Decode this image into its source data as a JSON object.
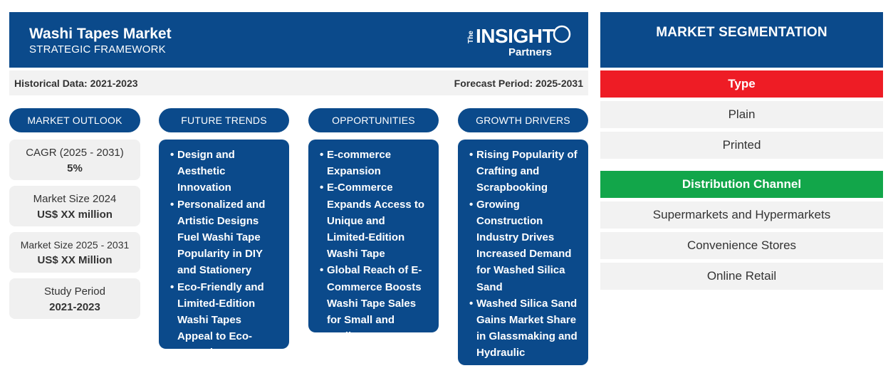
{
  "header": {
    "title": "Washi Tapes Market",
    "subtitle": "STRATEGIC FRAMEWORK",
    "logo": {
      "the": "The",
      "insight": "INSIGHT",
      "partners": "Partners"
    }
  },
  "periods": {
    "historical": "Historical Data: 2021-2023",
    "forecast": "Forecast Period: 2025-2031"
  },
  "columns": {
    "market_outlook": "MARKET OUTLOOK",
    "future_trends": "FUTURE TRENDS",
    "opportunities": "OPPORTUNITIES",
    "growth_drivers": "GROWTH DRIVERS"
  },
  "outlook": [
    {
      "label": "CAGR (2025 - 2031)",
      "value": "5%"
    },
    {
      "label": "Market Size 2024",
      "value": "US$ XX million"
    },
    {
      "label": "Market Size 2025 - 2031",
      "value": "US$ XX Million"
    },
    {
      "label": "Study Period",
      "value": "2021-2023"
    }
  ],
  "future_trends": [
    "Design and Aesthetic Innovation",
    "Personalized and Artistic Designs Fuel Washi Tape Popularity in DIY and Stationery",
    "Eco-Friendly and Limited-Edition Washi Tapes Appeal to Eco-Conscious Consumers"
  ],
  "opportunities": [
    "E-commerce Expansion",
    "E-Commerce Expands Access to Unique and Limited-Edition Washi Tape",
    "Global Reach of E-Commerce Boosts Washi Tape Sales for Small and Medium Businesses"
  ],
  "growth_drivers": [
    "Rising Popularity of Crafting and Scrapbooking",
    "Growing Construction Industry Drives Increased Demand for Washed Silica Sand",
    "Washed Silica Sand Gains Market Share in Glassmaking and Hydraulic Fracturing Sectors"
  ],
  "segmentation": {
    "title": "MARKET SEGMENTATION",
    "type": {
      "label": "Type",
      "color": "#ee1c25",
      "items": [
        "Plain",
        "Printed"
      ]
    },
    "distribution": {
      "label": "Distribution Channel",
      "color": "#12a64a",
      "items": [
        "Supermarkets and Hypermarkets",
        "Convenience Stores",
        "Online Retail"
      ]
    }
  }
}
